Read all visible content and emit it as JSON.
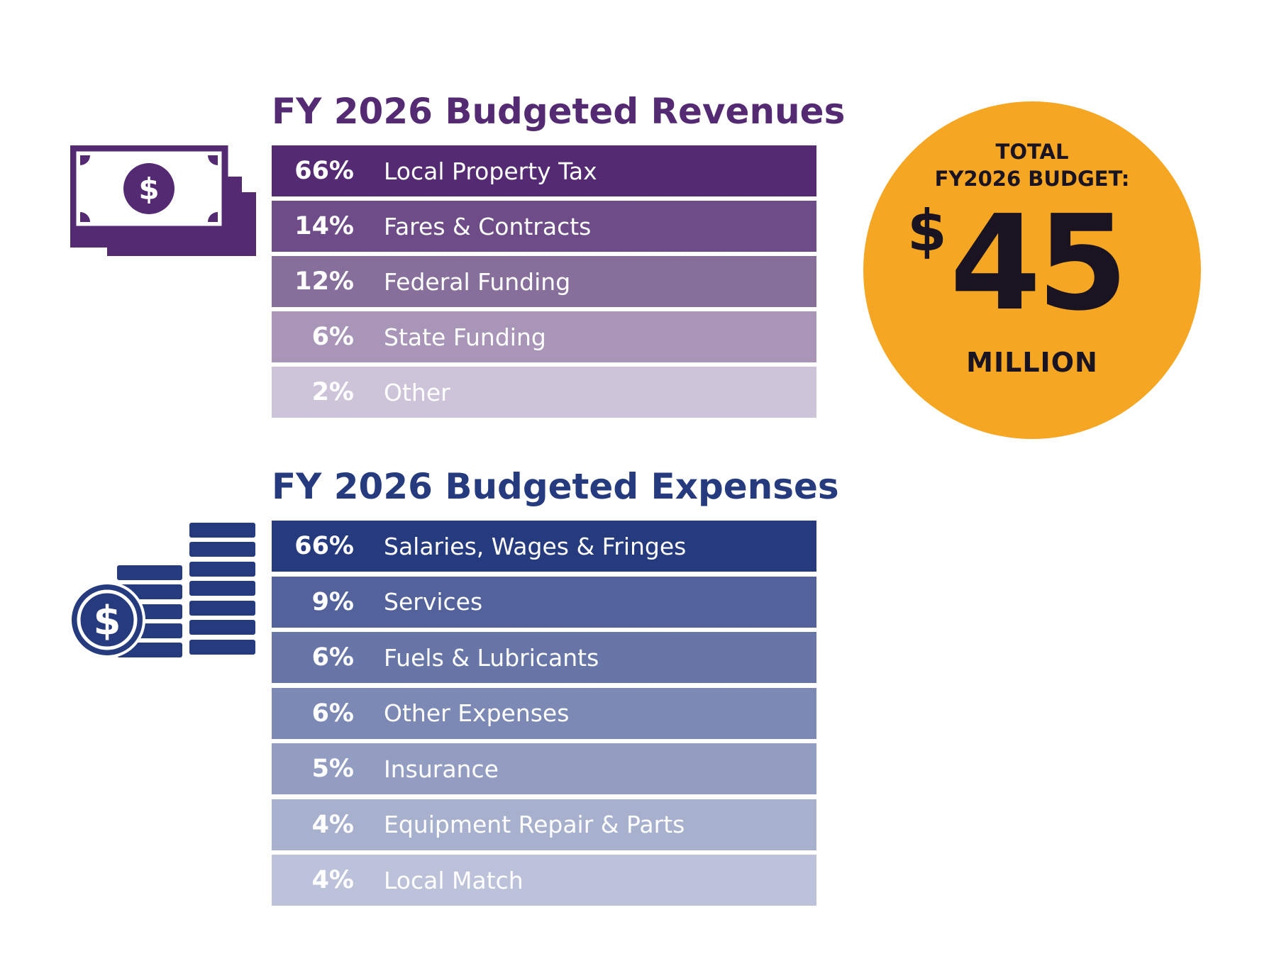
{
  "revenues": {
    "title": "FY 2026 Budgeted Revenues",
    "icon": "money-bills-icon",
    "rows": [
      {
        "pct": "66%",
        "label": "Local Property Tax",
        "color": "#542a72"
      },
      {
        "pct": "14%",
        "label": "Fares & Contracts",
        "color": "#6d4c87"
      },
      {
        "pct": "12%",
        "label": "Federal Funding",
        "color": "#876f9c"
      },
      {
        "pct": "6%",
        "label": "State Funding",
        "color": "#a895b7"
      },
      {
        "pct": "2%",
        "label": "Other",
        "color": "#cec4da"
      }
    ]
  },
  "expenses": {
    "title": "FY 2026 Budgeted Expenses",
    "icon": "coin-stacks-icon",
    "rows": [
      {
        "pct": "66%",
        "label": "Salaries, Wages & Fringes",
        "color": "#263a7e"
      },
      {
        "pct": "9%",
        "label": "Services",
        "color": "#53629b"
      },
      {
        "pct": "6%",
        "label": "Fuels & Lubricants",
        "color": "#6776a6"
      },
      {
        "pct": "6%",
        "label": "Other Expenses",
        "color": "#7c89b4"
      },
      {
        "pct": "5%",
        "label": "Insurance",
        "color": "#939dc1"
      },
      {
        "pct": "4%",
        "label": "Equipment Repair & Parts",
        "color": "#a7b0cd"
      },
      {
        "pct": "4%",
        "label": "Local Match",
        "color": "#bcc2da"
      }
    ]
  },
  "total": {
    "line1": "TOTAL",
    "line2": "FY2026 BUDGET:",
    "currency": "$",
    "amount": "45",
    "unit": "MILLION",
    "color": "#f5a623"
  }
}
